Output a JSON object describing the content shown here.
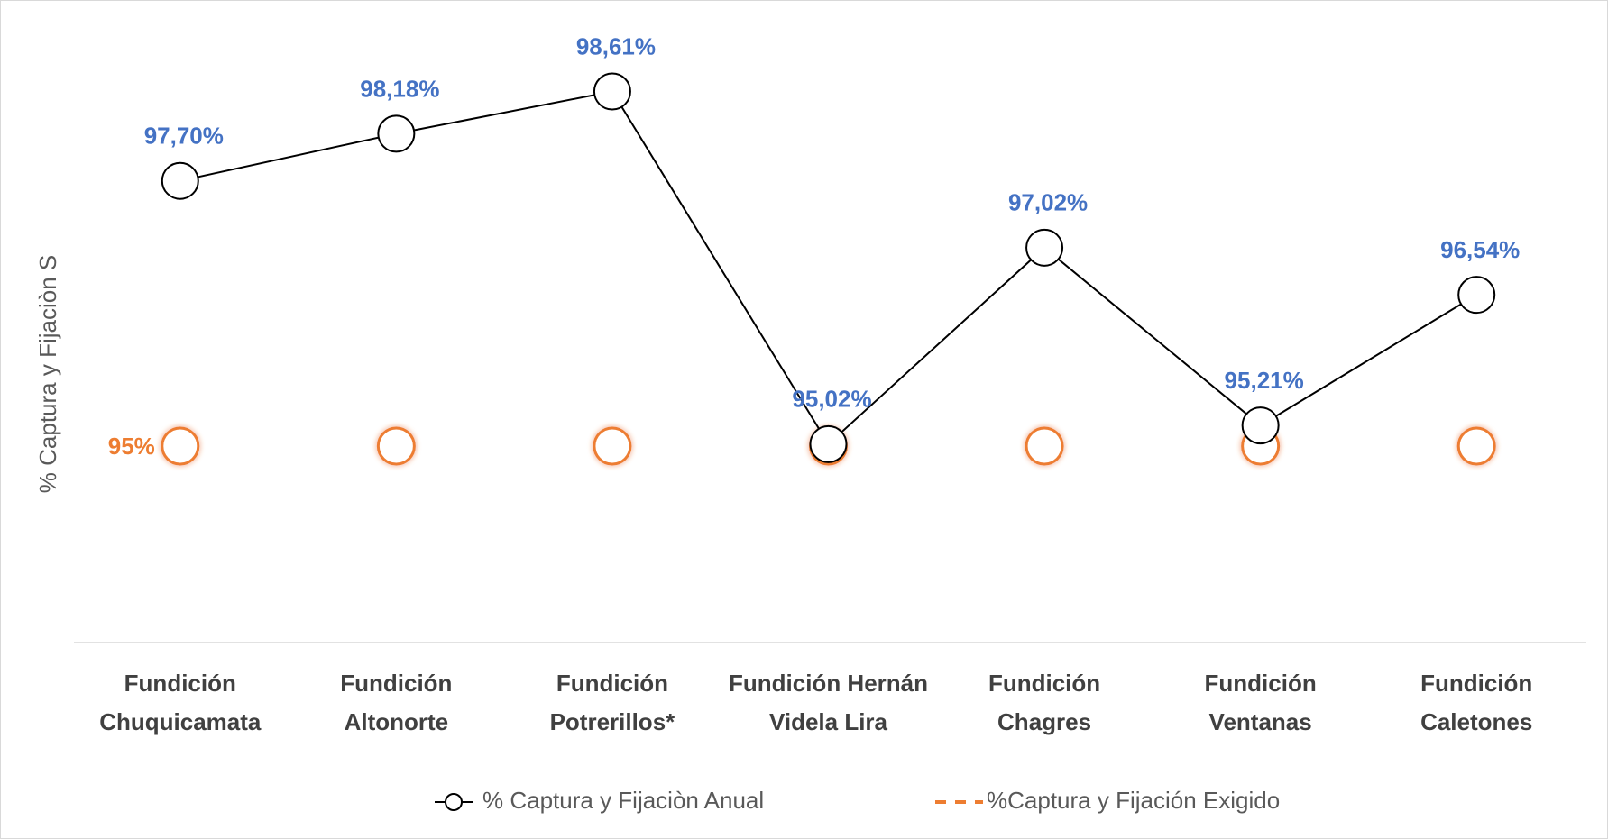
{
  "chart_data": {
    "type": "line",
    "y_label": "% Captura y Fijaciòn S",
    "categories": [
      "Fundición Chuquicamata",
      "Fundición Altonorte",
      "Fundición Potrerillos*",
      "Fundición Hernán Videla Lira",
      "Fundición Chagres",
      "Fundición Ventanas",
      "Fundición Caletones"
    ],
    "series": [
      {
        "name": "% Captura y Fijaciòn Anual",
        "color": "#000000",
        "label_color": "#4472c4",
        "values": [
          97.7,
          98.18,
          98.61,
          95.02,
          97.02,
          95.21,
          96.54
        ],
        "value_labels": [
          "97,70%",
          "98,18%",
          "98,61%",
          "95,02%",
          "97,02%",
          "95,21%",
          "96,54%"
        ]
      },
      {
        "name": "%Captura y Fijación Exigido",
        "color": "#ed7d31",
        "label_color": "#ed7d31",
        "values": [
          95,
          95,
          95,
          95,
          95,
          95,
          95
        ],
        "value_labels": [
          "95%",
          null,
          null,
          null,
          null,
          null,
          null
        ]
      }
    ],
    "ylim": [
      93,
      99
    ],
    "grid": false
  }
}
